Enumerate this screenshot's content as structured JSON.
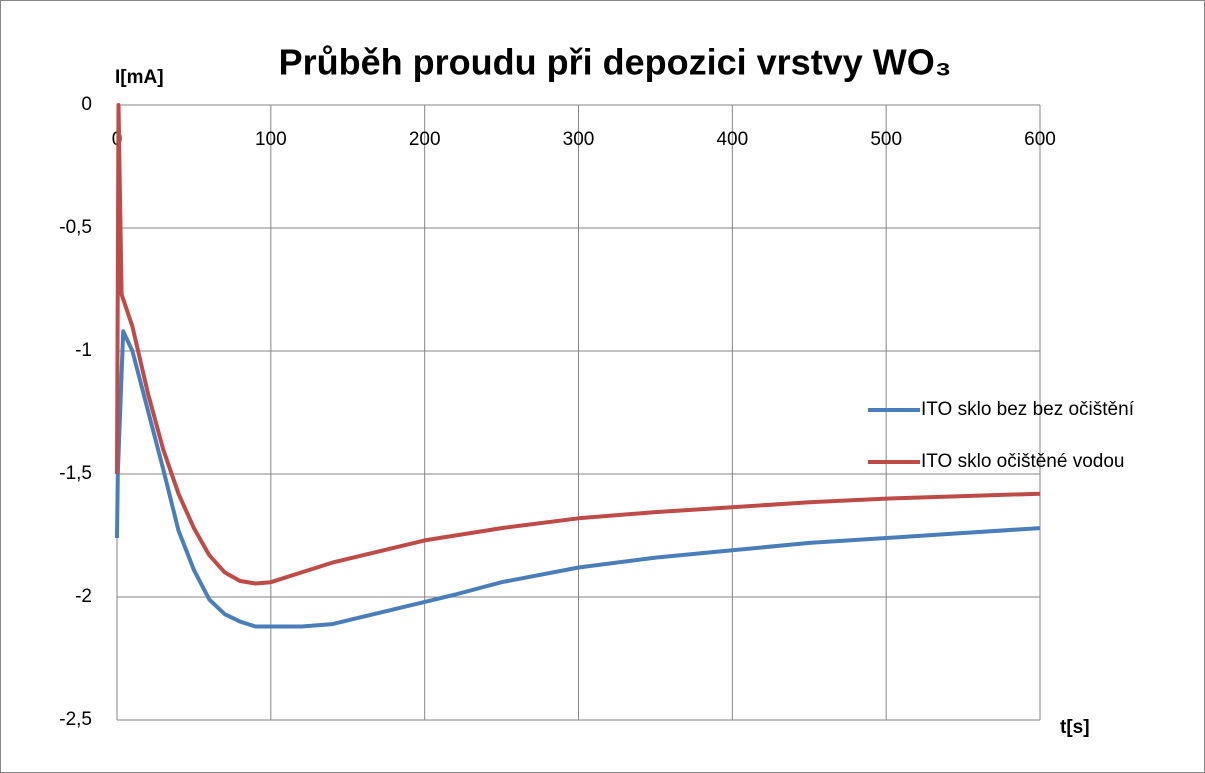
{
  "chart_data": {
    "type": "line",
    "title": "Průběh proudu při depozici vrstvy WO₃",
    "x_label": "t[s]",
    "y_label": "I[mA]",
    "xlim": [
      0,
      600
    ],
    "xticks": [
      0,
      100,
      200,
      300,
      400,
      500,
      600
    ],
    "ylim": [
      -2.5,
      0
    ],
    "yticks": [
      0,
      {
        "value": -0.5,
        "label": "-0,5"
      },
      -1,
      {
        "value": -1.5,
        "label": "-1,5"
      },
      -2,
      {
        "value": -2.5,
        "label": "-2,5"
      }
    ],
    "grid": true,
    "legend": "right",
    "series": [
      {
        "name": "ITO sklo bez bez očištění",
        "color": "#4a7ebb",
        "x": [
          0,
          0.5,
          4,
          10,
          20,
          30,
          40,
          50,
          60,
          70,
          80,
          90,
          100,
          120,
          140,
          160,
          180,
          200,
          220,
          250,
          300,
          350,
          400,
          450,
          500,
          550,
          600
        ],
        "values": [
          -1.76,
          -1.5,
          -0.92,
          -1.0,
          -1.24,
          -1.48,
          -1.73,
          -1.89,
          -2.01,
          -2.07,
          -2.1,
          -2.12,
          -2.12,
          -2.12,
          -2.11,
          -2.08,
          -2.05,
          -2.02,
          -1.99,
          -1.94,
          -1.88,
          -1.84,
          -1.81,
          -1.78,
          -1.76,
          -1.74,
          -1.72
        ]
      },
      {
        "name": "ITO sklo očištěné vodou",
        "color": "#be4b48",
        "x": [
          0,
          1,
          3,
          10,
          20,
          30,
          40,
          50,
          60,
          70,
          80,
          90,
          100,
          120,
          140,
          160,
          180,
          200,
          250,
          300,
          350,
          400,
          450,
          500,
          550,
          600
        ],
        "values": [
          -1.5,
          0,
          -0.77,
          -0.9,
          -1.17,
          -1.4,
          -1.58,
          -1.72,
          -1.83,
          -1.9,
          -1.935,
          -1.945,
          -1.94,
          -1.9,
          -1.86,
          -1.83,
          -1.8,
          -1.77,
          -1.72,
          -1.68,
          -1.655,
          -1.635,
          -1.615,
          -1.6,
          -1.59,
          -1.58
        ]
      }
    ]
  }
}
